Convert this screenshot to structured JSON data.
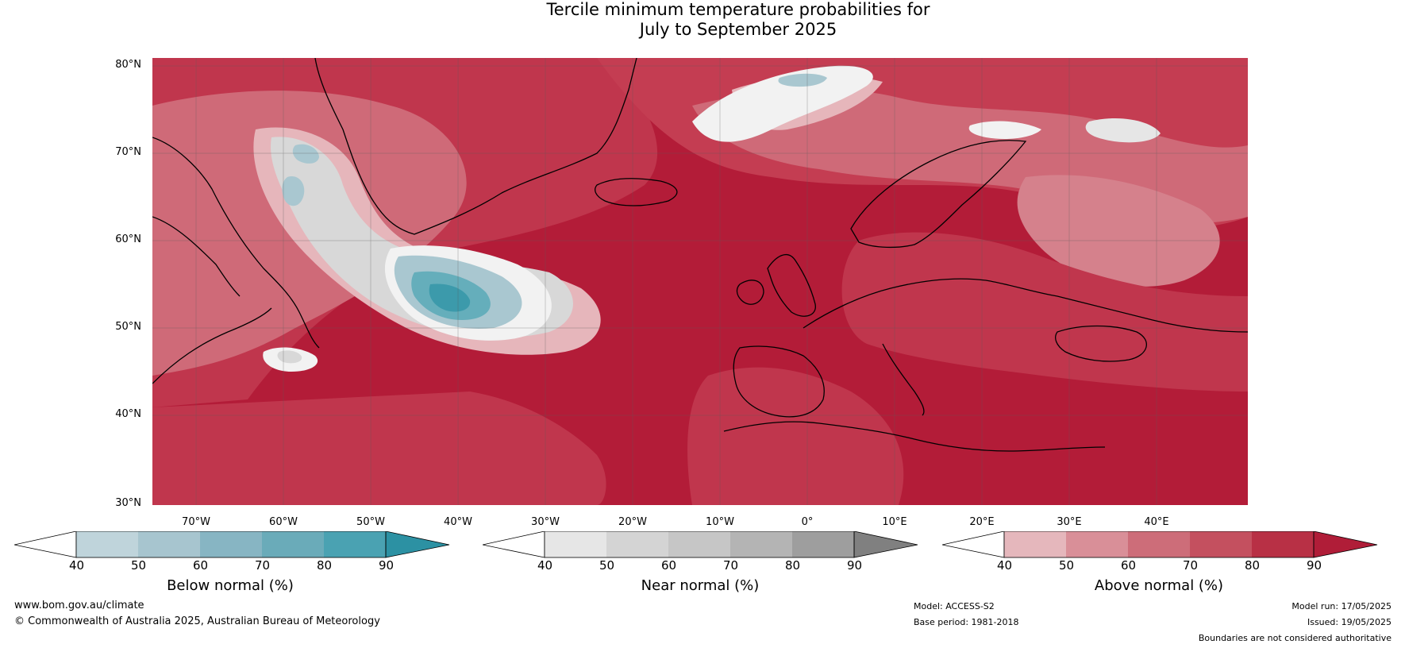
{
  "title": {
    "line1": "Tercile minimum temperature probabilities for",
    "line2": "July to September 2025"
  },
  "map": {
    "lat_labels": [
      "80°N",
      "70°N",
      "60°N",
      "50°N",
      "40°N",
      "30°N"
    ],
    "lon_labels": [
      "70°W",
      "60°W",
      "50°W",
      "40°W",
      "30°W",
      "20°W",
      "10°W",
      "0°",
      "10°E",
      "20°E",
      "30°E",
      "40°E"
    ],
    "colors": {
      "ocean_deep": "#b31c38",
      "above_80": "#c0364d",
      "above_70": "#cf6a78",
      "above_60": "#da8f98",
      "above_50": "#e6b6bb",
      "near": "#d8d8d8",
      "near_white": "#f2f2f2",
      "below_50": "#a9c7d0",
      "below_70": "#65aebb",
      "below_80": "#3c9aab",
      "coast": "#000000",
      "border": "#7a7a7a"
    }
  },
  "colorbars": [
    {
      "label": "Below normal (%)",
      "ticks": [
        "40",
        "50",
        "60",
        "70",
        "80",
        "90"
      ],
      "colors": [
        "#bfd4db",
        "#a7c5cf",
        "#87b5c3",
        "#6aabb9",
        "#4aa2b2",
        "#2c91a3"
      ],
      "end_low": "#ffffff",
      "end_high": "#2c91a3"
    },
    {
      "label": "Near normal (%)",
      "ticks": [
        "40",
        "50",
        "60",
        "70",
        "80",
        "90"
      ],
      "colors": [
        "#e6e6e6",
        "#d4d4d4",
        "#c6c6c6",
        "#b4b4b4",
        "#9e9e9e",
        "#808080"
      ],
      "end_low": "#ffffff",
      "end_high": "#808080"
    },
    {
      "label": "Above normal (%)",
      "ticks": [
        "40",
        "50",
        "60",
        "70",
        "80",
        "90"
      ],
      "colors": [
        "#e5b7bc",
        "#d98f98",
        "#cd6d79",
        "#c4505f",
        "#b83045",
        "#b01d38"
      ],
      "end_low": "#ffffff",
      "end_high": "#b01d38"
    }
  ],
  "footer": {
    "website": "www.bom.gov.au/climate",
    "copyright": "© Commonwealth of Australia 2025, Australian Bureau of Meteorology",
    "model": "Model: ACCESS-S2",
    "base_period": "Base period: 1981-2018",
    "model_run": "Model run: 17/05/2025",
    "issued": "Issued: 19/05/2025",
    "disclaimer": "Boundaries are not considered authoritative"
  }
}
